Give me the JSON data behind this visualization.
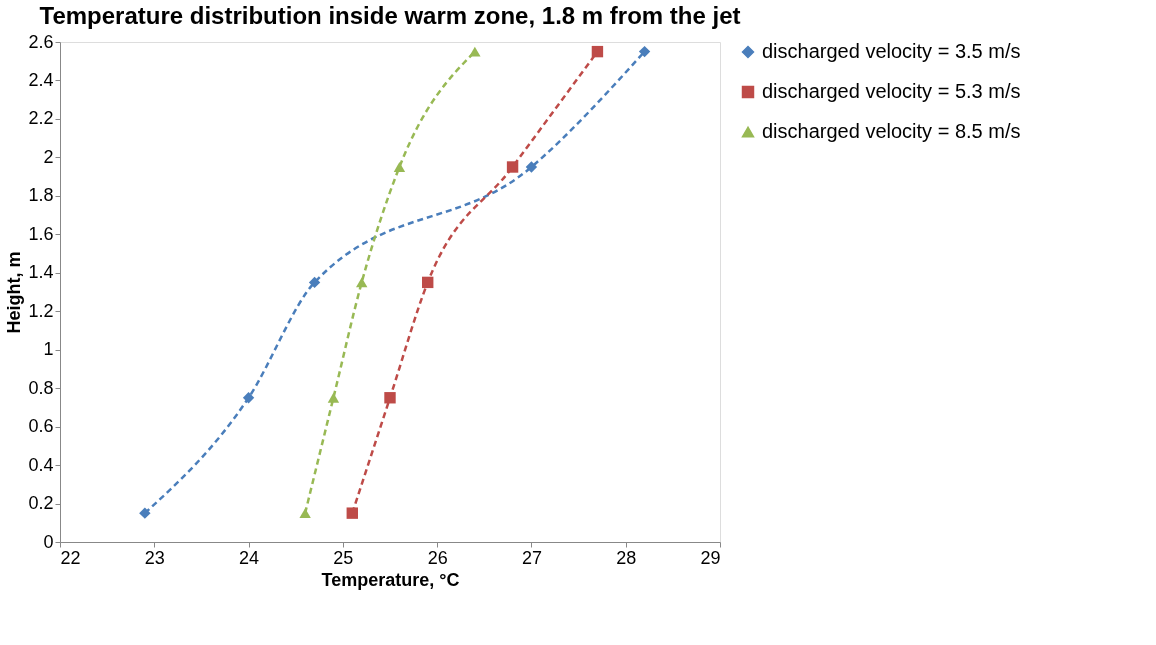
{
  "chart_data": {
    "type": "line",
    "title": "Temperature distribution inside warm zone, 1.8 m from the jet",
    "xlabel": "Temperature, °C",
    "ylabel": "Height, m",
    "series": [
      {
        "name": "discharged velocity = 3.5 m/s",
        "color": "#4a7ebb",
        "marker": "diamond",
        "x": [
          22.9,
          24,
          24.7,
          27,
          28.2
        ],
        "values": [
          0.15,
          0.75,
          1.35,
          1.95,
          2.55
        ]
      },
      {
        "name": "discharged velocity = 5.3 m/s",
        "color": "#be4b48",
        "marker": "square",
        "x": [
          25.1,
          25.5,
          25.9,
          26.8,
          27.7
        ],
        "values": [
          0.15,
          0.75,
          1.35,
          1.95,
          2.55
        ]
      },
      {
        "name": "discharged velocity = 8.5 m/s",
        "color": "#98b954",
        "marker": "triangle",
        "x": [
          24.6,
          24.9,
          25.2,
          25.6,
          26.4
        ],
        "values": [
          0.15,
          0.75,
          1.35,
          1.95,
          2.55
        ]
      }
    ],
    "xlim": [
      22,
      29
    ],
    "xticks": [
      22,
      23,
      24,
      25,
      26,
      27,
      28,
      29
    ],
    "ylim": [
      0,
      2.6
    ],
    "yticks": [
      0,
      0.2,
      0.4,
      0.6,
      0.8,
      1,
      1.2,
      1.4,
      1.6,
      1.8,
      2,
      2.2,
      2.4,
      2.6
    ],
    "grid": false,
    "legend": "right",
    "line_style": "dashed"
  }
}
